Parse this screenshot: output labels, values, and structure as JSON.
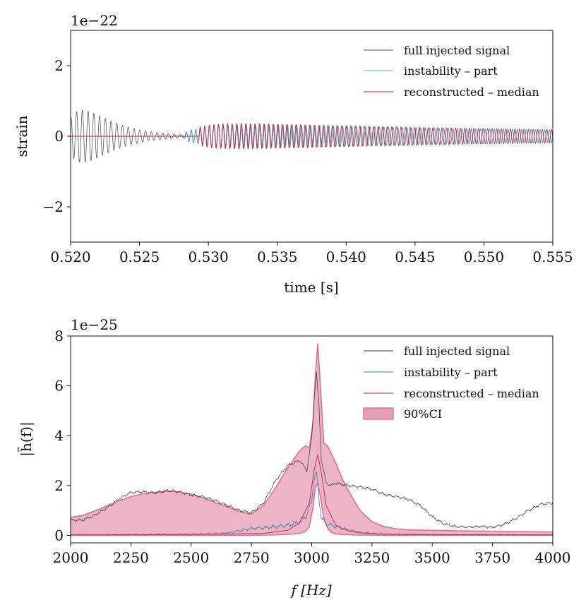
{
  "chart_data": [
    {
      "type": "line",
      "panel": "top",
      "title": "",
      "xlabel": "time [s]",
      "ylabel": "strain",
      "offset_text": "1e−22",
      "xlim": [
        0.52,
        0.555
      ],
      "ylim": [
        -3,
        3
      ],
      "xticks": [
        0.52,
        0.525,
        0.53,
        0.535,
        0.54,
        0.545,
        0.55,
        0.555
      ],
      "xtick_labels": [
        "0.520",
        "0.525",
        "0.530",
        "0.535",
        "0.540",
        "0.545",
        "0.550",
        "0.555"
      ],
      "yticks": [
        -2,
        0,
        2
      ],
      "ytick_labels": [
        "−2",
        "0",
        "2"
      ],
      "legend_position": "upper-right",
      "series": [
        {
          "name": "full injected signal",
          "color": "#4a5a66",
          "model": {
            "kind": "sum-of-oscillations",
            "components": [
              {
                "t0": 0.5195,
                "freq_hz": 2400,
                "amp": 2.3,
                "rise": 0.0015,
                "decay": 0.0022
              },
              {
                "t0": 0.528,
                "freq_hz": 3000,
                "amp": 0.38,
                "rise": 0.0015,
                "decay": 0.035
              }
            ]
          }
        },
        {
          "name": "instability – part",
          "color": "#3fb8a8",
          "model": {
            "kind": "sum-of-oscillations",
            "components": [
              {
                "t0": 0.528,
                "freq_hz": 3000,
                "amp": 0.4,
                "rise": 0.0015,
                "decay": 0.035
              }
            ]
          }
        },
        {
          "name": "reconstructed – median",
          "color": "#cc1f5a",
          "model": {
            "kind": "sum-of-oscillations",
            "start": 0.5293,
            "components": [
              {
                "t0": 0.528,
                "freq_hz": 3020,
                "amp": 0.42,
                "rise": 0.0013,
                "decay": 0.034
              }
            ]
          }
        }
      ]
    },
    {
      "type": "line",
      "panel": "bottom",
      "title": "",
      "xlabel": "f [Hz]",
      "ylabel": "|h̃(f)|",
      "offset_text": "1e−25",
      "xlim": [
        2000,
        4000
      ],
      "ylim": [
        -0.3,
        8
      ],
      "xticks": [
        2000,
        2250,
        2500,
        2750,
        3000,
        3250,
        3500,
        3750,
        4000
      ],
      "xtick_labels": [
        "2000",
        "2250",
        "2500",
        "2750",
        "3000",
        "3250",
        "3500",
        "3750",
        "4000"
      ],
      "yticks": [
        0,
        2,
        4,
        6,
        8
      ],
      "ytick_labels": [
        "0",
        "2",
        "4",
        "6",
        "8"
      ],
      "legend_position": "upper-right",
      "series": [
        {
          "name": "full injected signal",
          "color": "#3a3a3a",
          "x": [
            2000,
            2050,
            2100,
            2150,
            2200,
            2250,
            2300,
            2350,
            2400,
            2450,
            2500,
            2550,
            2600,
            2650,
            2700,
            2750,
            2800,
            2850,
            2900,
            2950,
            2980,
            3000,
            3010,
            3020,
            3030,
            3040,
            3060,
            3080,
            3100,
            3150,
            3200,
            3250,
            3300,
            3350,
            3400,
            3450,
            3500,
            3550,
            3600,
            3650,
            3700,
            3750,
            3800,
            3850,
            3900,
            3950,
            4000
          ],
          "values": [
            0.6,
            0.62,
            0.8,
            1.1,
            1.45,
            1.72,
            1.75,
            1.7,
            1.8,
            1.75,
            1.62,
            1.55,
            1.4,
            1.2,
            1.0,
            0.9,
            1.3,
            2.2,
            2.8,
            3.0,
            2.6,
            3.9,
            5.5,
            6.5,
            5.2,
            3.0,
            2.1,
            2.0,
            2.1,
            2.0,
            1.95,
            1.85,
            1.65,
            1.55,
            1.45,
            1.2,
            0.75,
            0.45,
            0.35,
            0.33,
            0.36,
            0.32,
            0.45,
            0.7,
            1.0,
            1.25,
            1.3
          ]
        },
        {
          "name": "instability – part",
          "color": "#2f8f8a",
          "x": [
            2000,
            2100,
            2200,
            2300,
            2400,
            2500,
            2600,
            2650,
            2700,
            2750,
            2800,
            2850,
            2900,
            2950,
            2980,
            3000,
            3010,
            3020,
            3030,
            3040,
            3060,
            3100,
            3150,
            3200,
            3300,
            3400,
            3500,
            4000
          ],
          "values": [
            0.02,
            0.02,
            0.03,
            0.03,
            0.04,
            0.05,
            0.06,
            0.1,
            0.18,
            0.28,
            0.3,
            0.35,
            0.4,
            0.55,
            0.8,
            1.4,
            2.3,
            2.5,
            1.5,
            0.7,
            0.45,
            0.35,
            0.22,
            0.12,
            0.05,
            0.03,
            0.02,
            0.01
          ]
        },
        {
          "name": "reconstructed – median",
          "color": "#c41e5a",
          "x": [
            2000,
            2200,
            2400,
            2600,
            2800,
            2900,
            2950,
            2990,
            3010,
            3025,
            3040,
            3060,
            3100,
            3150,
            3200,
            3300,
            3500,
            4000
          ],
          "values": [
            0.02,
            0.02,
            0.03,
            0.05,
            0.08,
            0.2,
            0.5,
            1.3,
            2.6,
            3.25,
            2.5,
            1.2,
            0.4,
            0.18,
            0.1,
            0.05,
            0.03,
            0.02
          ]
        }
      ],
      "ci": {
        "name": "90%CI",
        "fill": "#e8a0b8",
        "edge": "#e07096",
        "x": [
          2000,
          2050,
          2100,
          2150,
          2200,
          2250,
          2300,
          2350,
          2400,
          2450,
          2500,
          2550,
          2600,
          2650,
          2700,
          2750,
          2800,
          2850,
          2900,
          2950,
          2975,
          2990,
          3005,
          3015,
          3025,
          3035,
          3050,
          3065,
          3080,
          3100,
          3130,
          3170,
          3200,
          3250,
          3300,
          3350,
          3400,
          3500,
          3600,
          3700,
          3800,
          3900,
          4000
        ],
        "upper": [
          0.72,
          0.8,
          0.98,
          1.18,
          1.38,
          1.55,
          1.67,
          1.73,
          1.77,
          1.74,
          1.65,
          1.5,
          1.32,
          1.15,
          0.95,
          0.85,
          1.2,
          1.9,
          2.7,
          3.4,
          3.6,
          3.5,
          4.5,
          6.4,
          7.7,
          6.2,
          3.7,
          3.6,
          3.3,
          2.9,
          2.2,
          1.5,
          1.0,
          0.55,
          0.35,
          0.26,
          0.22,
          0.2,
          0.18,
          0.17,
          0.16,
          0.15,
          0.14
        ],
        "lower": [
          0.0,
          0.0,
          0.0,
          0.0,
          0.0,
          0.0,
          0.0,
          0.0,
          0.0,
          0.0,
          0.0,
          0.0,
          0.0,
          0.0,
          0.0,
          0.0,
          0.01,
          0.02,
          0.04,
          0.08,
          0.15,
          0.35,
          1.1,
          1.9,
          2.1,
          1.6,
          0.7,
          0.3,
          0.12,
          0.06,
          0.03,
          0.02,
          0.01,
          0.01,
          0.0,
          0.0,
          0.0,
          0.0,
          0.0,
          0.0,
          0.0,
          0.0,
          0.0
        ]
      }
    }
  ]
}
